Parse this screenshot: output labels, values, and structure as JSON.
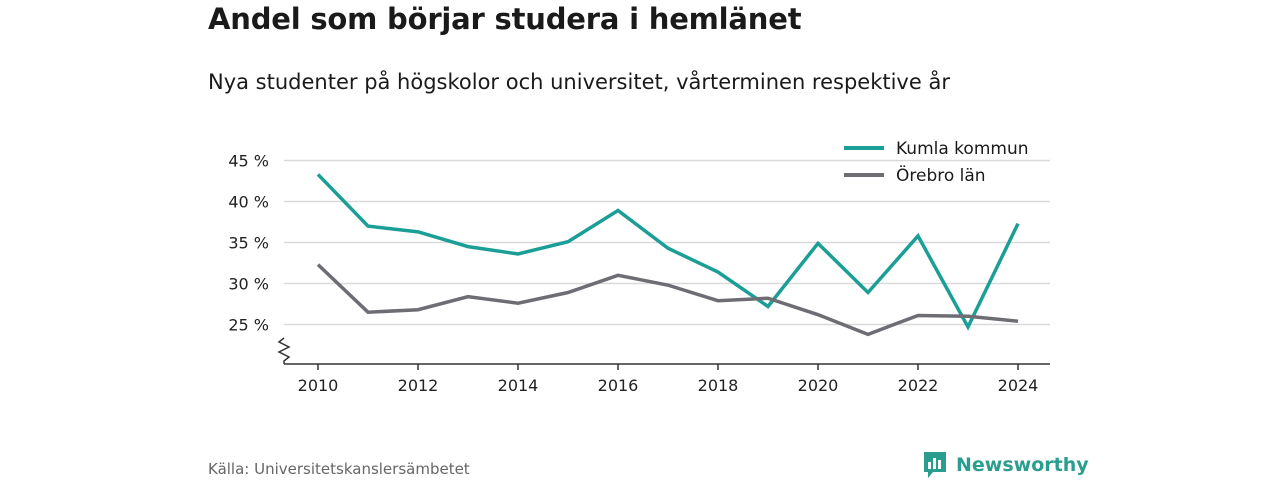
{
  "header": {
    "title": "Andel som börjar studera i hemlänet",
    "subtitle": "Nya studenter på högskolor och universitet, vårterminen respektive år"
  },
  "footer": {
    "source": "Källa: Universitetskanslersämbetet",
    "brand": "Newsworthy"
  },
  "colors": {
    "kumla": "#1a9e96",
    "orebro": "#6e6d74",
    "grid": "#d9d9d9",
    "axis": "#333333",
    "brand": "#2a9d8f"
  },
  "chart_data": {
    "type": "line",
    "title": "Andel som börjar studera i hemlänet",
    "subtitle": "Nya studenter på högskolor och universitet, vårterminen respektive år",
    "x": [
      2010,
      2011,
      2012,
      2013,
      2014,
      2015,
      2016,
      2017,
      2018,
      2019,
      2020,
      2021,
      2022,
      2023,
      2024
    ],
    "x_ticks": [
      2010,
      2012,
      2014,
      2016,
      2018,
      2020,
      2022,
      2024
    ],
    "y_ticks": [
      25,
      30,
      35,
      40,
      45
    ],
    "y_tick_labels": [
      "25 %",
      "30 %",
      "35 %",
      "40 %",
      "45 %"
    ],
    "ylim": [
      20,
      45
    ],
    "axis_break": true,
    "grid": true,
    "legend_position": "top-right",
    "series": [
      {
        "name": "Kumla kommun",
        "color": "#1a9e96",
        "values": [
          43.3,
          37.0,
          36.3,
          34.5,
          33.6,
          35.1,
          38.9,
          34.3,
          31.4,
          27.2,
          34.9,
          28.9,
          35.8,
          24.7,
          37.3
        ]
      },
      {
        "name": "Örebro län",
        "color": "#6e6d74",
        "values": [
          32.3,
          26.5,
          26.8,
          28.4,
          27.6,
          28.9,
          31.0,
          29.8,
          27.9,
          28.2,
          26.2,
          23.8,
          26.1,
          26.0,
          25.4
        ]
      }
    ]
  }
}
